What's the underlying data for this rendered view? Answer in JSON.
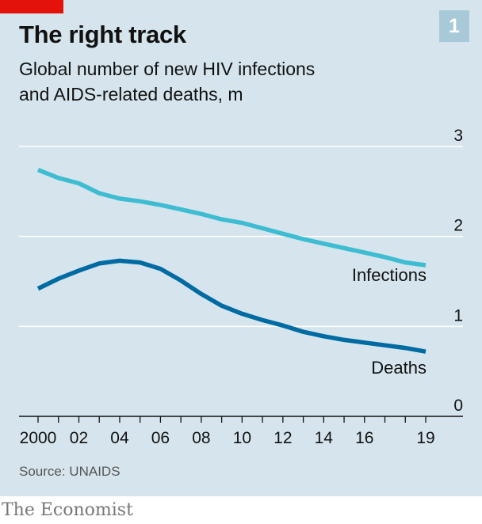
{
  "header": {
    "title": "The right track",
    "subtitle_line1": "Global number of new HIV infections",
    "subtitle_line2": "and AIDS-related deaths, m",
    "chart_number": "1"
  },
  "footer": {
    "source": "Source: UNAIDS",
    "brand": "The Economist"
  },
  "colors": {
    "background": "#d6e5ed",
    "infections": "#3ebcd2",
    "deaths": "#006ba2",
    "gridline": "#ffffff",
    "accent_red": "#e3120b"
  },
  "chart_data": {
    "type": "line",
    "title": "The right track",
    "subtitle": "Global number of new HIV infections and AIDS-related deaths, m",
    "xlabel": "",
    "ylabel": "m",
    "x": [
      2000,
      2001,
      2002,
      2003,
      2004,
      2005,
      2006,
      2007,
      2008,
      2009,
      2010,
      2011,
      2012,
      2013,
      2014,
      2015,
      2016,
      2017,
      2018,
      2019
    ],
    "xlim": [
      2000,
      2019
    ],
    "ylim": [
      0,
      3
    ],
    "yticks": [
      0,
      1,
      2,
      3
    ],
    "yticklabels": [
      "0",
      "1",
      "2",
      "3"
    ],
    "xticks": [
      2000,
      2002,
      2004,
      2006,
      2008,
      2010,
      2012,
      2014,
      2016,
      2019
    ],
    "xticklabels": [
      "2000",
      "02",
      "04",
      "06",
      "08",
      "10",
      "12",
      "14",
      "16",
      "19"
    ],
    "grid": true,
    "series": [
      {
        "name": "Infections",
        "color": "#3ebcd2",
        "values": [
          2.74,
          2.65,
          2.59,
          2.48,
          2.42,
          2.39,
          2.35,
          2.3,
          2.25,
          2.19,
          2.15,
          2.09,
          2.03,
          1.97,
          1.92,
          1.87,
          1.82,
          1.77,
          1.71,
          1.68
        ]
      },
      {
        "name": "Deaths",
        "color": "#006ba2",
        "values": [
          1.42,
          1.53,
          1.62,
          1.7,
          1.73,
          1.71,
          1.64,
          1.51,
          1.36,
          1.23,
          1.14,
          1.07,
          1.01,
          0.94,
          0.89,
          0.85,
          0.82,
          0.79,
          0.76,
          0.72
        ]
      }
    ]
  }
}
